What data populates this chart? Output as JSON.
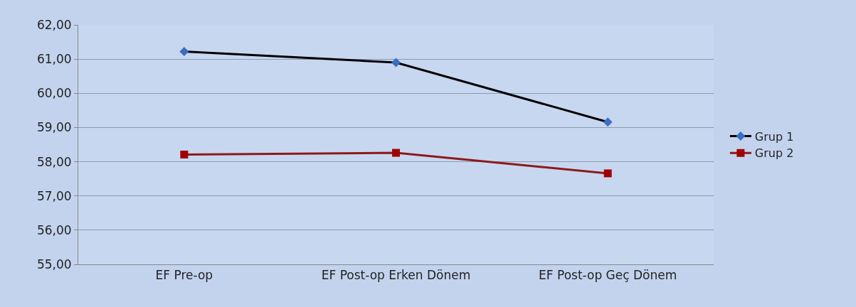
{
  "chart_data": {
    "type": "line",
    "categories": [
      "EF Pre-op",
      "EF Post-op Erken Dönem",
      "EF Post-op Geç Dönem"
    ],
    "series": [
      {
        "name": "Grup 1",
        "color": "#000000",
        "colors": [
          "#3a6ec0",
          "#3a6ec0",
          "#3a6ec0"
        ],
        "marker": "diamond",
        "values": [
          61.22,
          60.9,
          59.16
        ]
      },
      {
        "name": "Grup 2",
        "color": "#8b1a1a",
        "colors": [
          "#a00000",
          "#a00000",
          "#a00000"
        ],
        "marker": "square",
        "values": [
          58.21,
          58.26,
          57.66
        ]
      }
    ],
    "ylim": [
      55,
      62
    ],
    "yticks": [
      {
        "value": 55,
        "label": "55,00"
      },
      {
        "value": 56,
        "label": "56,00"
      },
      {
        "value": 57,
        "label": "57,00"
      },
      {
        "value": 58,
        "label": "58,00"
      },
      {
        "value": 59,
        "label": "59,00"
      },
      {
        "value": 60,
        "label": "60,00"
      },
      {
        "value": 61,
        "label": "61,00"
      },
      {
        "value": 62,
        "label": "62,00"
      }
    ],
    "grid": "y",
    "legend": "right",
    "line_style": "solid"
  }
}
